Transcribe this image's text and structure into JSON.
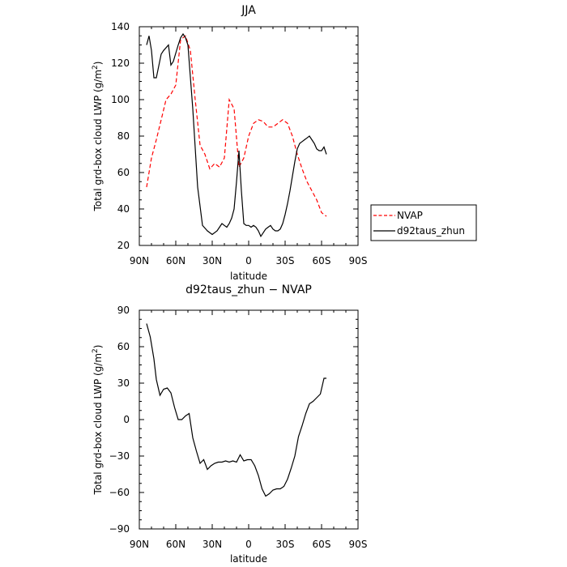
{
  "chart_data": [
    {
      "type": "line",
      "title": "JJA",
      "xlabel": "latitude",
      "ylabel": "Total grd-box cloud LWP (g/m",
      "ylabel_sup": "2",
      "ylabel_end": ")",
      "xlim": [
        90,
        -90
      ],
      "ylim": [
        20,
        140
      ],
      "xticks": [
        90,
        60,
        30,
        0,
        -30,
        -60,
        -90
      ],
      "xticklabels": [
        "90N",
        "60N",
        "30N",
        "0",
        "30S",
        "60S",
        "90S"
      ],
      "yticks": [
        20,
        40,
        60,
        80,
        100,
        120,
        140
      ],
      "yticklabels": [
        "20",
        "40",
        "60",
        "80",
        "100",
        "120",
        "140"
      ],
      "legend_position": "right",
      "series": [
        {
          "name": "NVAP",
          "color": "#ff0000",
          "dash": "dashed",
          "x": [
            84,
            80,
            76,
            72,
            68,
            64,
            60,
            56,
            52,
            48,
            44,
            40,
            36,
            32,
            28,
            24,
            20,
            16,
            12,
            8,
            4,
            0,
            -4,
            -8,
            -12,
            -16,
            -20,
            -24,
            -28,
            -32,
            -36,
            -40,
            -44,
            -48,
            -52,
            -56,
            -60,
            -64
          ],
          "y": [
            52,
            68,
            78,
            89,
            100,
            103,
            108,
            133,
            135,
            127,
            100,
            75,
            70,
            62,
            65,
            63,
            68,
            100,
            95,
            63,
            68,
            80,
            87,
            89,
            88,
            85,
            85,
            87,
            89,
            87,
            80,
            70,
            62,
            55,
            50,
            45,
            38,
            36
          ]
        },
        {
          "name": "d92taus_zhun",
          "color": "#000000",
          "dash": "solid",
          "x": [
            84,
            82,
            80,
            78,
            76,
            72,
            70,
            66,
            64,
            62,
            58,
            56,
            54,
            52,
            50,
            46,
            42,
            38,
            34,
            30,
            26,
            24,
            22,
            20,
            18,
            16,
            14,
            12,
            10,
            8,
            6,
            4,
            2,
            0,
            -2,
            -4,
            -6,
            -8,
            -10,
            -12,
            -14,
            -16,
            -18,
            -20,
            -22,
            -24,
            -26,
            -28,
            -30,
            -32,
            -34,
            -36,
            -38,
            -40,
            -42,
            -44,
            -46,
            -48,
            -50,
            -52,
            -54,
            -56,
            -58,
            -60,
            -62,
            -64
          ],
          "y": [
            130,
            135,
            127,
            112,
            112,
            125,
            127,
            130,
            119,
            121,
            130,
            134,
            136,
            134,
            130,
            95,
            52,
            31,
            28,
            26,
            28,
            30,
            32,
            31,
            30,
            32,
            35,
            40,
            55,
            72,
            50,
            32,
            31,
            31,
            30,
            31,
            30,
            28,
            25,
            27,
            29,
            30,
            31,
            29,
            28,
            28,
            29,
            32,
            37,
            43,
            50,
            58,
            66,
            73,
            76,
            77,
            78,
            79,
            80,
            78,
            76,
            73,
            72,
            72,
            74,
            70
          ]
        }
      ]
    },
    {
      "type": "line",
      "title": "d92taus_zhun − NVAP",
      "xlabel": "latitude",
      "ylabel": "Total grd-box cloud LWP (g/m",
      "ylabel_sup": "2",
      "ylabel_end": ")",
      "xlim": [
        90,
        -90
      ],
      "ylim": [
        -90,
        90
      ],
      "xticks": [
        90,
        60,
        30,
        0,
        -30,
        -60,
        -90
      ],
      "xticklabels": [
        "90N",
        "60N",
        "30N",
        "0",
        "30S",
        "60S",
        "90S"
      ],
      "yticks": [
        -90,
        -60,
        -30,
        0,
        30,
        60,
        90
      ],
      "yticklabels": [
        "−90",
        "−60",
        "−30",
        "0",
        "30",
        "60",
        "90"
      ],
      "series": [
        {
          "color": "#000000",
          "dash": "solid",
          "x": [
            84,
            81,
            78,
            76,
            73,
            70,
            67,
            64,
            61,
            58,
            55,
            52,
            49,
            46,
            43,
            40,
            37,
            34,
            31,
            28,
            25,
            22,
            19,
            16,
            13,
            10,
            7,
            4,
            1,
            -2,
            -5,
            -8,
            -11,
            -14,
            -17,
            -20,
            -23,
            -26,
            -29,
            -32,
            -35,
            -38,
            -41,
            -44,
            -47,
            -50,
            -53,
            -56,
            -59,
            -62,
            -64
          ],
          "y": [
            79,
            68,
            50,
            33,
            20,
            25,
            26,
            22,
            10,
            0,
            0,
            3,
            5,
            -15,
            -26,
            -36,
            -33,
            -41,
            -38,
            -36,
            -35,
            -35,
            -34,
            -35,
            -34,
            -35,
            -29,
            -34,
            -33,
            -33,
            -38,
            -46,
            -57,
            -63,
            -61,
            -58,
            -57,
            -57,
            -55,
            -49,
            -40,
            -30,
            -14,
            -5,
            5,
            13,
            15,
            18,
            21,
            34,
            34
          ]
        }
      ]
    }
  ]
}
